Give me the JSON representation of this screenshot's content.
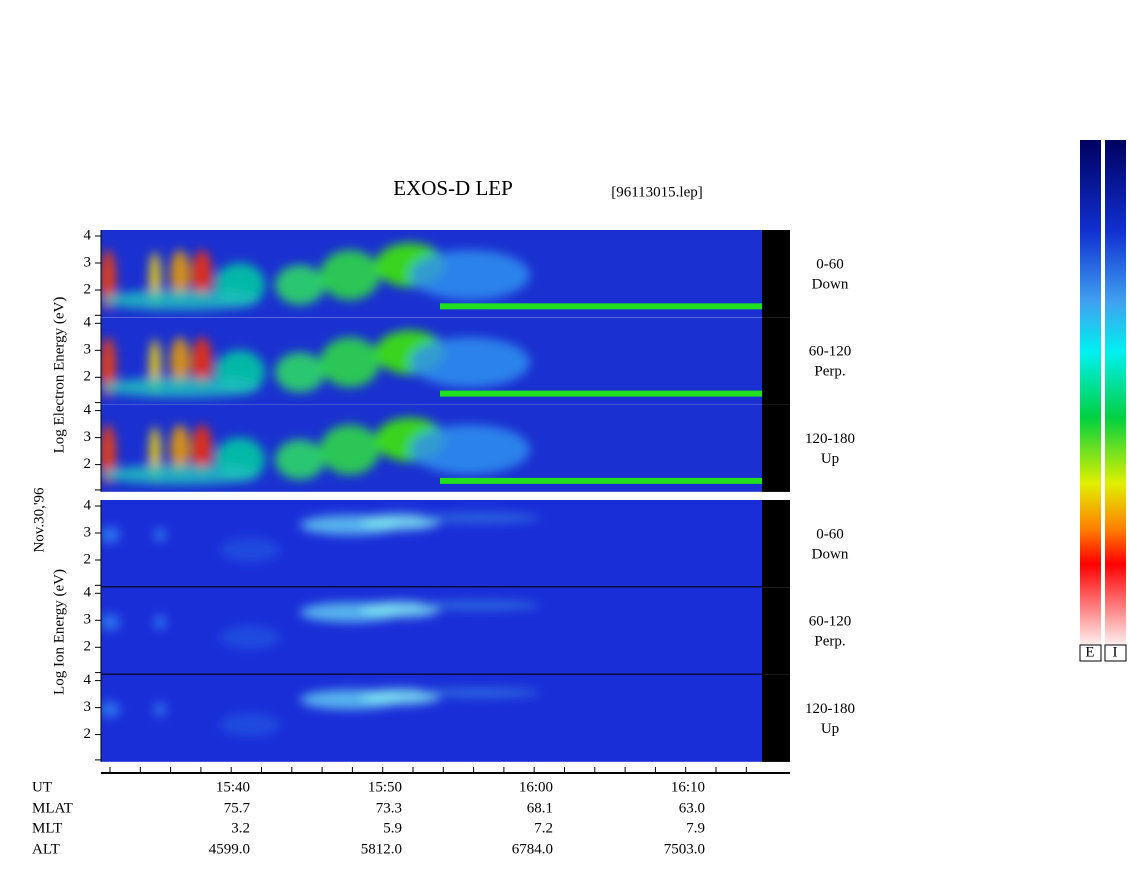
{
  "title": "EXOS-D LEP",
  "file": "[96113015.lep]",
  "date_label": "Nov.30,'96",
  "electron_axis": "Log  Electron  Energy (eV)",
  "ion_axis": "Log  Ion  Energy (eV)",
  "panels": [
    {
      "ticks": [
        "4",
        "3",
        "2"
      ],
      "angle": "0-60",
      "direction": "Down"
    },
    {
      "ticks": [
        "4",
        "3",
        "2"
      ],
      "angle": "60-120",
      "direction": "Perp."
    },
    {
      "ticks": [
        "4",
        "3",
        "2"
      ],
      "angle": "120-180",
      "direction": "Up"
    },
    {
      "ticks": [
        "4",
        "3",
        "2"
      ],
      "angle": "0-60",
      "direction": "Down"
    },
    {
      "ticks": [
        "4",
        "3",
        "2"
      ],
      "angle": "60-120",
      "direction": "Perp."
    },
    {
      "ticks": [
        "4",
        "3",
        "2"
      ],
      "angle": "120-180",
      "direction": "Up"
    }
  ],
  "row_labels": [
    "UT",
    "MLAT",
    "MLT",
    "ALT"
  ],
  "columns": [
    [
      "15:40",
      "75.7",
      "3.2",
      "4599.0"
    ],
    [
      "15:50",
      "73.3",
      "5.9",
      "5812.0"
    ],
    [
      "16:00",
      "68.1",
      "7.2",
      "6784.0"
    ],
    [
      "16:10",
      "63.0",
      "7.9",
      "7503.0"
    ]
  ],
  "colorbar_labels": [
    "E",
    "I"
  ]
}
